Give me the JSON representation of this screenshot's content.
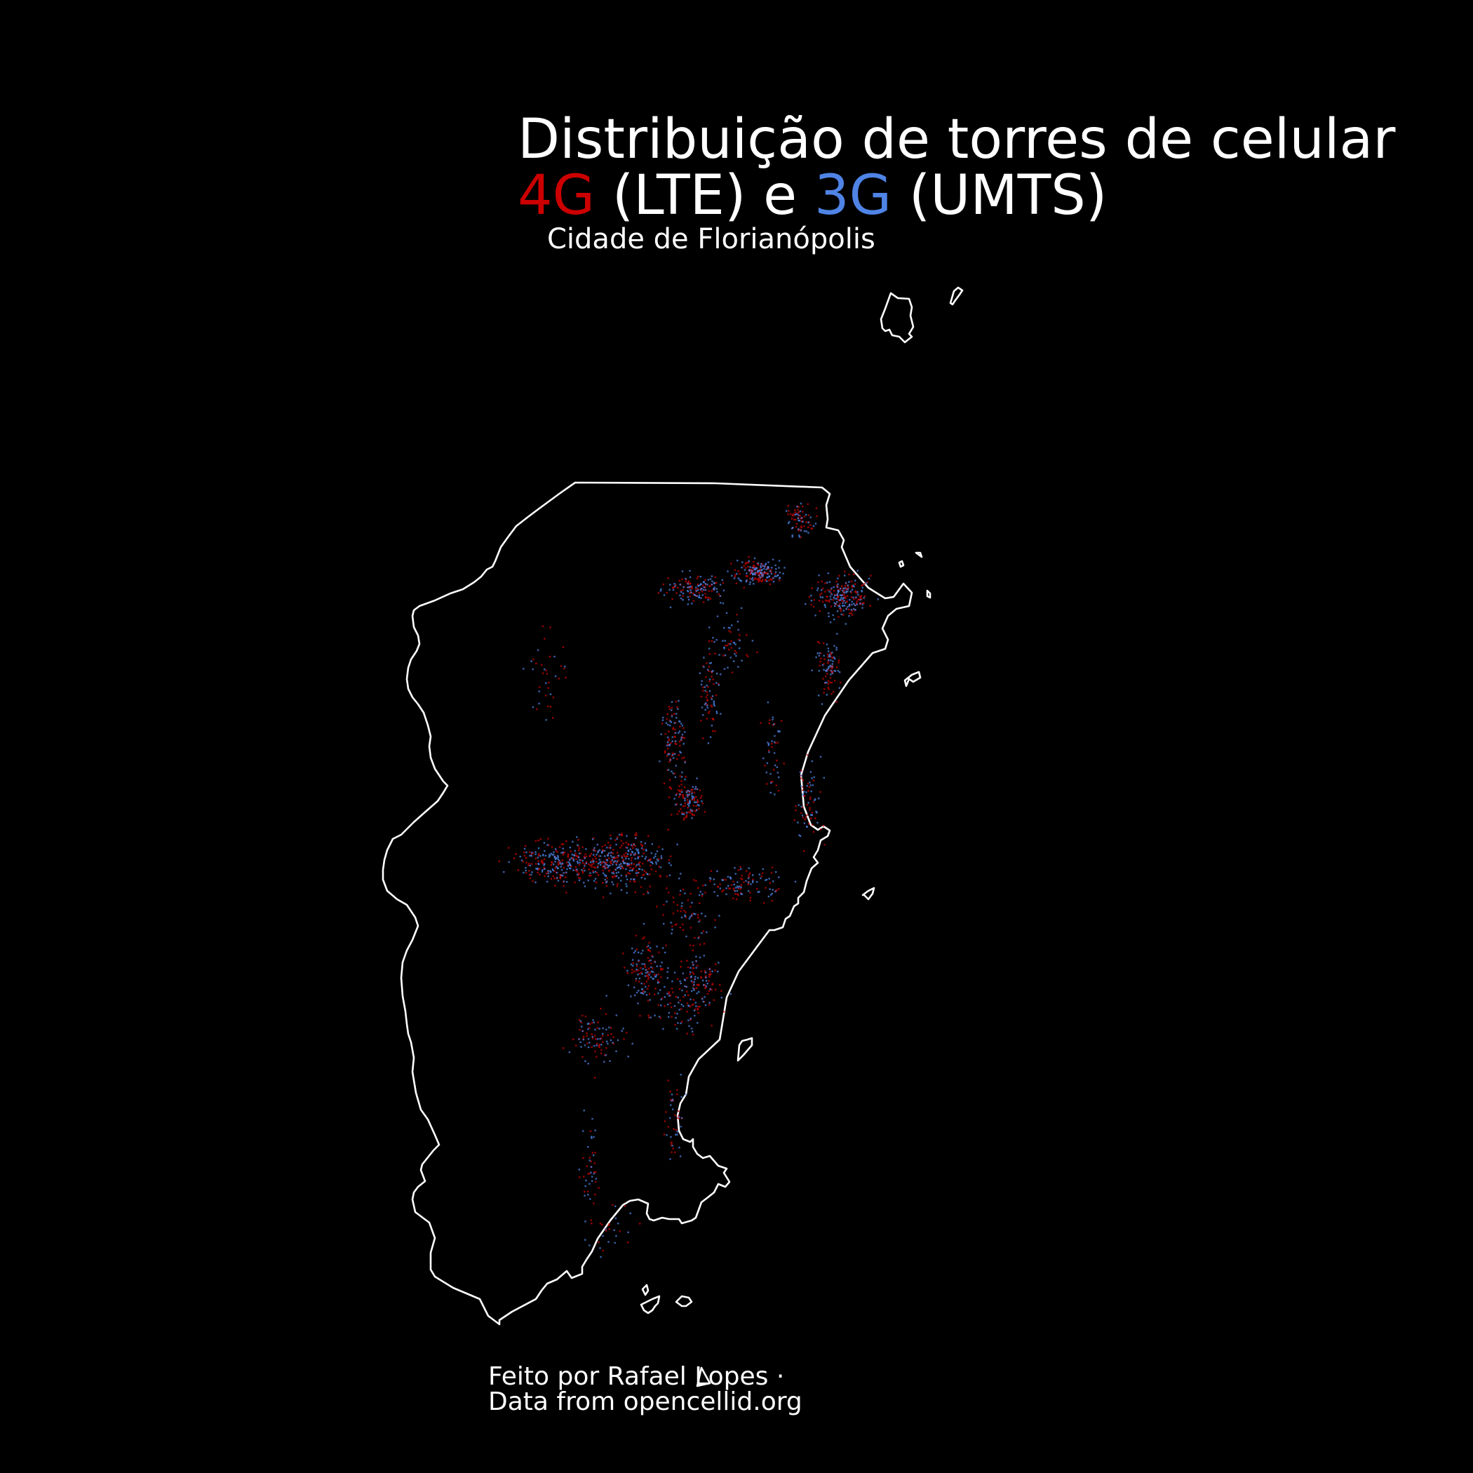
{
  "title": {
    "line1": "Distribuição de torres de celular",
    "line2_part1": "4G",
    "line2_part2": " (LTE) e ",
    "line2_part3": "3G",
    "line2_part4": " (UMTS)"
  },
  "subtitle": "Cidade de Florianópolis",
  "credits": {
    "line1": "Feito por Rafael Lopes ·",
    "line2": "Data from opencellid.org"
  },
  "colors": {
    "background": "#000000",
    "outline": "#ffffff",
    "lte_4g": "#cc0000",
    "umts_3g": "#4f84e6"
  },
  "legend": [
    {
      "label": "4G",
      "color": "#cc0000"
    },
    {
      "label": "3G",
      "color": "#4f84e6"
    }
  ]
}
